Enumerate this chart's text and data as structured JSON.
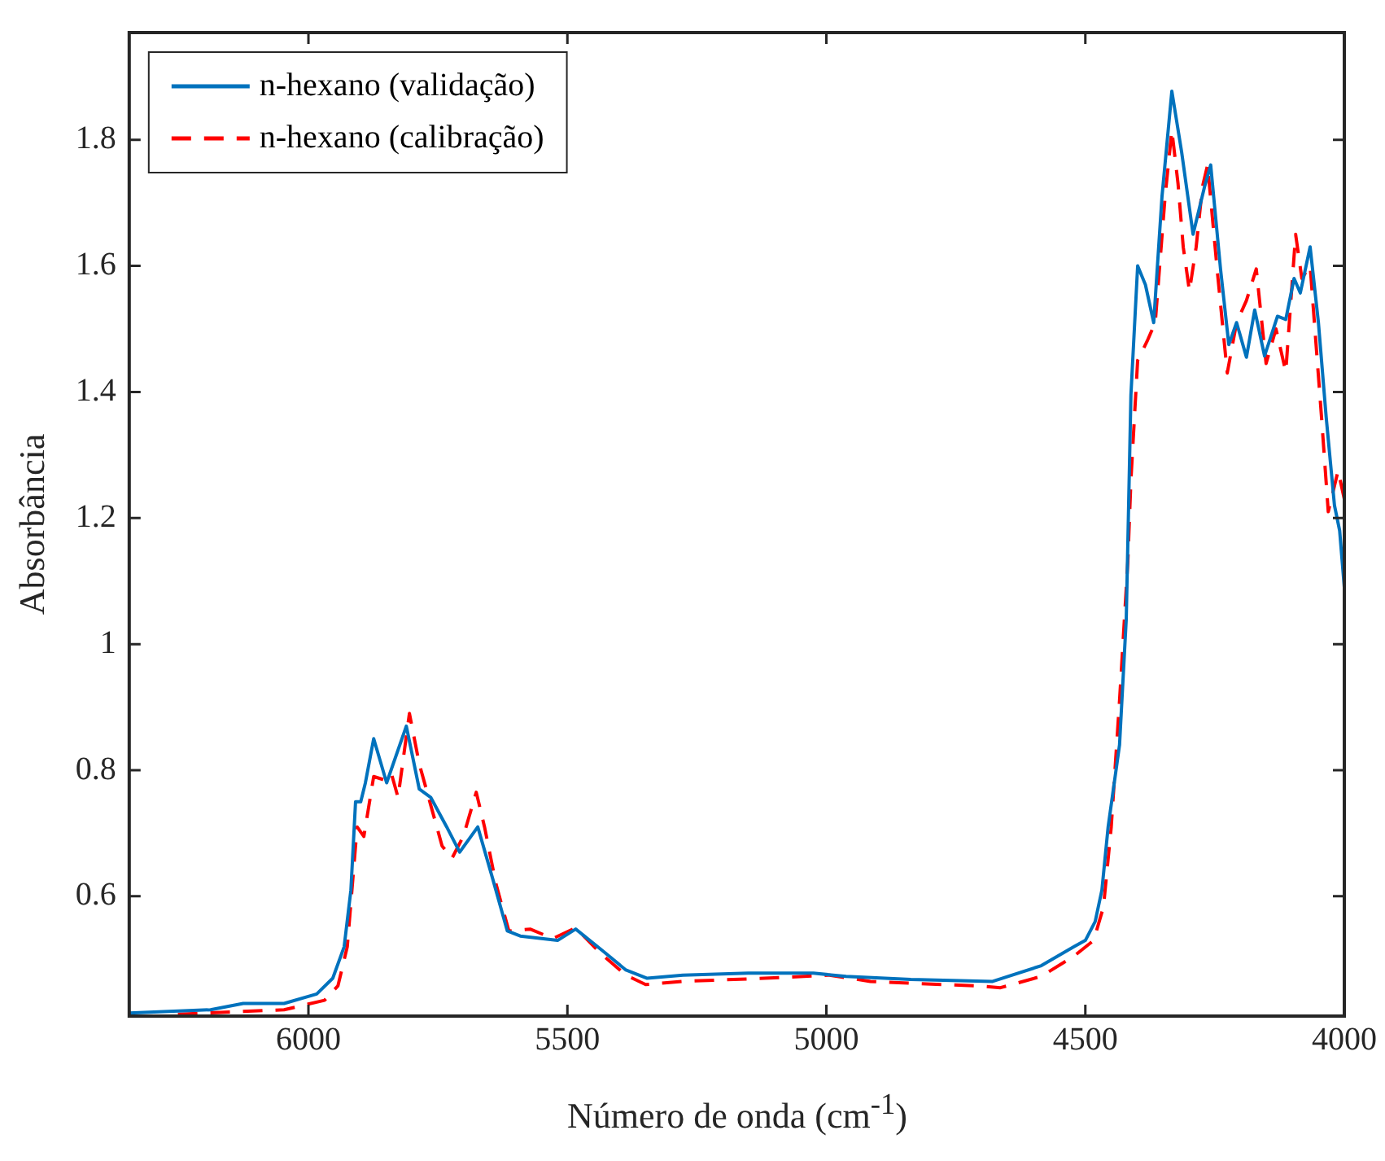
{
  "chart_data": {
    "type": "line",
    "xlabel": "Número de onda (cm$^{-1}$)",
    "ylabel": "Absorbância",
    "xlim": [
      6346,
      4000
    ],
    "xticks": [
      6000,
      5500,
      5000,
      4500,
      4000
    ],
    "ylim": [
      0.41,
      1.97
    ],
    "yticks": [
      0.6,
      0.8,
      1,
      1.2,
      1.4,
      1.6,
      1.8
    ],
    "legend": "top left",
    "grid": false,
    "series": [
      {
        "name": "n-hexano (validação)",
        "color": "#0072bd",
        "line_style": "solid",
        "x": [
          6346,
          6189,
          6126,
          6047,
          5984,
          5953,
          5931,
          5918,
          5909,
          5899,
          5890,
          5874,
          5849,
          5811,
          5786,
          5764,
          5733,
          5708,
          5673,
          5645,
          5616,
          5591,
          5519,
          5484,
          5434,
          5387,
          5346,
          5277,
          5151,
          5025,
          4962,
          4837,
          4679,
          4585,
          4522,
          4500,
          4481,
          4468,
          4456,
          4434,
          4421,
          4412,
          4399,
          4384,
          4368,
          4352,
          4333,
          4314,
          4292,
          4270,
          4258,
          4239,
          4223,
          4208,
          4189,
          4173,
          4154,
          4129,
          4113,
          4097,
          4085,
          4066,
          4050,
          4035,
          4019,
          4009,
          4000
        ],
        "values": [
          0.415,
          0.42,
          0.43,
          0.43,
          0.445,
          0.47,
          0.52,
          0.61,
          0.75,
          0.75,
          0.78,
          0.85,
          0.78,
          0.87,
          0.77,
          0.757,
          0.71,
          0.67,
          0.71,
          0.63,
          0.545,
          0.537,
          0.53,
          0.548,
          0.515,
          0.483,
          0.47,
          0.475,
          0.478,
          0.478,
          0.473,
          0.468,
          0.465,
          0.49,
          0.52,
          0.53,
          0.56,
          0.61,
          0.71,
          0.84,
          1.04,
          1.395,
          1.6,
          1.57,
          1.51,
          1.71,
          1.877,
          1.78,
          1.65,
          1.725,
          1.76,
          1.595,
          1.475,
          1.51,
          1.455,
          1.53,
          1.457,
          1.52,
          1.515,
          1.58,
          1.557,
          1.63,
          1.51,
          1.36,
          1.22,
          1.18,
          1.09
        ]
      },
      {
        "name": "n-hexano (calibração)",
        "color": "#ff0000",
        "line_style": "dashed",
        "x": [
          6252,
          6047,
          5969,
          5943,
          5925,
          5906,
          5893,
          5874,
          5855,
          5840,
          5827,
          5805,
          5786,
          5764,
          5742,
          5723,
          5701,
          5676,
          5660,
          5638,
          5613,
          5572,
          5528,
          5484,
          5434,
          5387,
          5349,
          5277,
          5120,
          4994,
          4915,
          4837,
          4711,
          4664,
          4585,
          4522,
          4484,
          4465,
          4450,
          4434,
          4418,
          4412,
          4399,
          4381,
          4365,
          4346,
          4333,
          4321,
          4311,
          4299,
          4286,
          4274,
          4264,
          4245,
          4226,
          4208,
          4189,
          4170,
          4151,
          4132,
          4113,
          4094,
          4082,
          4066,
          4044,
          4031,
          4012,
          4000
        ],
        "values": [
          0.413,
          0.42,
          0.435,
          0.458,
          0.52,
          0.71,
          0.695,
          0.79,
          0.785,
          0.795,
          0.757,
          0.89,
          0.81,
          0.745,
          0.68,
          0.66,
          0.695,
          0.765,
          0.71,
          0.62,
          0.545,
          0.548,
          0.533,
          0.55,
          0.508,
          0.475,
          0.46,
          0.465,
          0.47,
          0.475,
          0.465,
          0.462,
          0.458,
          0.455,
          0.473,
          0.505,
          0.53,
          0.583,
          0.71,
          0.91,
          1.13,
          1.26,
          1.45,
          1.48,
          1.51,
          1.71,
          1.815,
          1.73,
          1.63,
          1.56,
          1.63,
          1.725,
          1.76,
          1.59,
          1.43,
          1.51,
          1.545,
          1.595,
          1.445,
          1.5,
          1.432,
          1.65,
          1.58,
          1.6,
          1.36,
          1.21,
          1.275,
          1.23
        ]
      }
    ]
  }
}
